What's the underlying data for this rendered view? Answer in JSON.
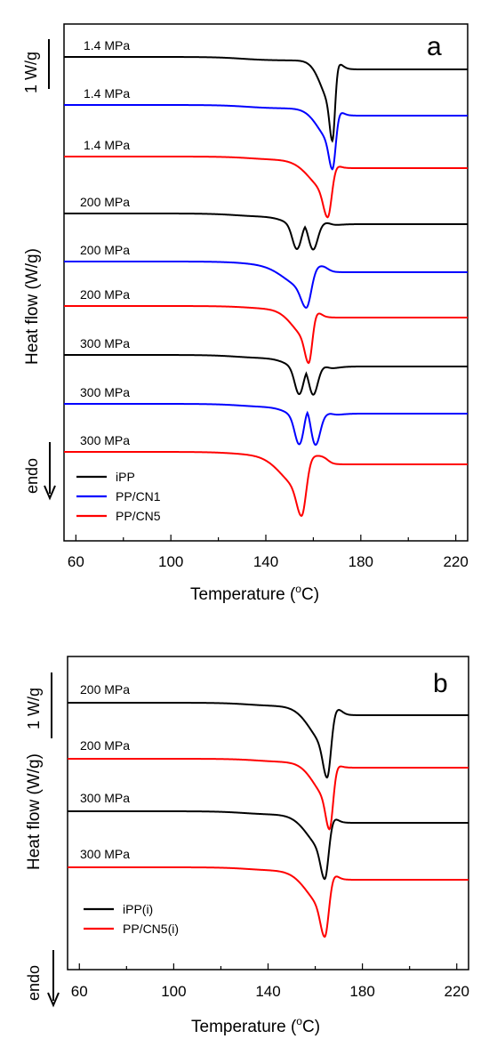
{
  "chart_data": [
    {
      "type": "line",
      "panel_label": "a",
      "xlabel": "Temperature (",
      "xlabel_super": "o",
      "xlabel_suffix": "C)",
      "ylabel": "Heat  flow (W/g)",
      "xlim": [
        55,
        225
      ],
      "xticks": [
        "60",
        "100",
        "140",
        "180",
        "220"
      ],
      "scale_label": "1 W/g",
      "endo_label": "endo",
      "legend": [
        {
          "name": "iPP",
          "color": "#000000"
        },
        {
          "name": "PP/CN1",
          "color": "#0000ff"
        },
        {
          "name": "PP/CN5",
          "color": "#ff0000"
        }
      ],
      "curves": [
        {
          "label": "1.4 MPa",
          "color": "#000000",
          "series": "iPP",
          "baseline": 64,
          "after": 74,
          "shape": "single",
          "onset": 130,
          "peak": 168,
          "depth": 90,
          "width": 1.6,
          "end": 172
        },
        {
          "label": "1.4 MPa",
          "color": "#0000ff",
          "series": "PP/CN1",
          "baseline": 118,
          "after": 126,
          "shape": "single",
          "onset": 132,
          "peak": 168,
          "depth": 68,
          "width": 2.0,
          "end": 172
        },
        {
          "label": "1.4 MPa",
          "color": "#ff0000",
          "series": "PP/CN5",
          "baseline": 176,
          "after": 185,
          "shape": "single",
          "onset": 134,
          "peak": 166,
          "depth": 64,
          "width": 2.5,
          "end": 170
        },
        {
          "label": "200 MPa",
          "color": "#000000",
          "series": "iPP",
          "baseline": 240,
          "after": 248,
          "shape": "double",
          "onset": 128,
          "peak1": 153,
          "peak2": 160,
          "dip": 6,
          "depth": 38,
          "end": 167
        },
        {
          "label": "200 MPa",
          "color": "#0000ff",
          "series": "PP/CN1",
          "baseline": 294,
          "after": 302,
          "shape": "single",
          "onset": 132,
          "peak": 157,
          "depth": 48,
          "width": 3.0,
          "end": 166
        },
        {
          "label": "200 MPa",
          "color": "#ff0000",
          "series": "PP/CN5",
          "baseline": 344,
          "after": 353,
          "shape": "single",
          "onset": 134,
          "peak": 158,
          "depth": 60,
          "width": 2.2,
          "end": 163
        },
        {
          "label": "300 MPa",
          "color": "#000000",
          "series": "iPP",
          "baseline": 399,
          "after": 408,
          "shape": "double",
          "onset": 128,
          "peak1": 154,
          "peak2": 160,
          "dip": 5,
          "depth": 42,
          "end": 166
        },
        {
          "label": "300 MPa",
          "color": "#0000ff",
          "series": "PP/CN1",
          "baseline": 454,
          "after": 461,
          "shape": "double",
          "onset": 130,
          "peak1": 154,
          "peak2": 161,
          "dip": 14,
          "depth": 44,
          "end": 168
        },
        {
          "label": "300 MPa",
          "color": "#ff0000",
          "series": "PP/CN5",
          "baseline": 508,
          "after": 518,
          "shape": "single",
          "onset": 128,
          "peak": 155,
          "depth": 68,
          "width": 2.8,
          "end": 166
        }
      ]
    },
    {
      "type": "line",
      "panel_label": "b",
      "xlabel": "Temperature (",
      "xlabel_super": "o",
      "xlabel_suffix": "C)",
      "ylabel": "Heat  flow (W/g)",
      "xlim": [
        55,
        225
      ],
      "xticks": [
        "60",
        "100",
        "140",
        "180",
        "220"
      ],
      "scale_label": "1 W/g",
      "endo_label": "endo",
      "legend": [
        {
          "name": "iPP(i)",
          "color": "#000000"
        },
        {
          "name": "PP/CN5(i)",
          "color": "#ff0000"
        }
      ],
      "curves": [
        {
          "label": "200 MPa",
          "color": "#000000",
          "series": "iPP(i)",
          "baseline": 790,
          "after": 800,
          "shape": "single",
          "onset": 132,
          "peak": 165,
          "depth": 80,
          "width": 2.4,
          "end": 171
        },
        {
          "label": "200 MPa",
          "color": "#ff0000",
          "series": "PP/CN5(i)",
          "baseline": 853,
          "after": 859,
          "shape": "single",
          "onset": 136,
          "peak": 166,
          "depth": 75,
          "width": 2.2,
          "end": 170
        },
        {
          "label": "300 MPa",
          "color": "#000000",
          "series": "iPP(i)",
          "baseline": 912,
          "after": 921,
          "shape": "single",
          "onset": 130,
          "peak": 164,
          "depth": 72,
          "width": 2.4,
          "end": 169
        },
        {
          "label": "300 MPa",
          "color": "#ff0000",
          "series": "PP/CN5(i)",
          "baseline": 975,
          "after": 985,
          "shape": "single",
          "onset": 132,
          "peak": 164,
          "depth": 74,
          "width": 2.5,
          "end": 169
        }
      ]
    }
  ]
}
